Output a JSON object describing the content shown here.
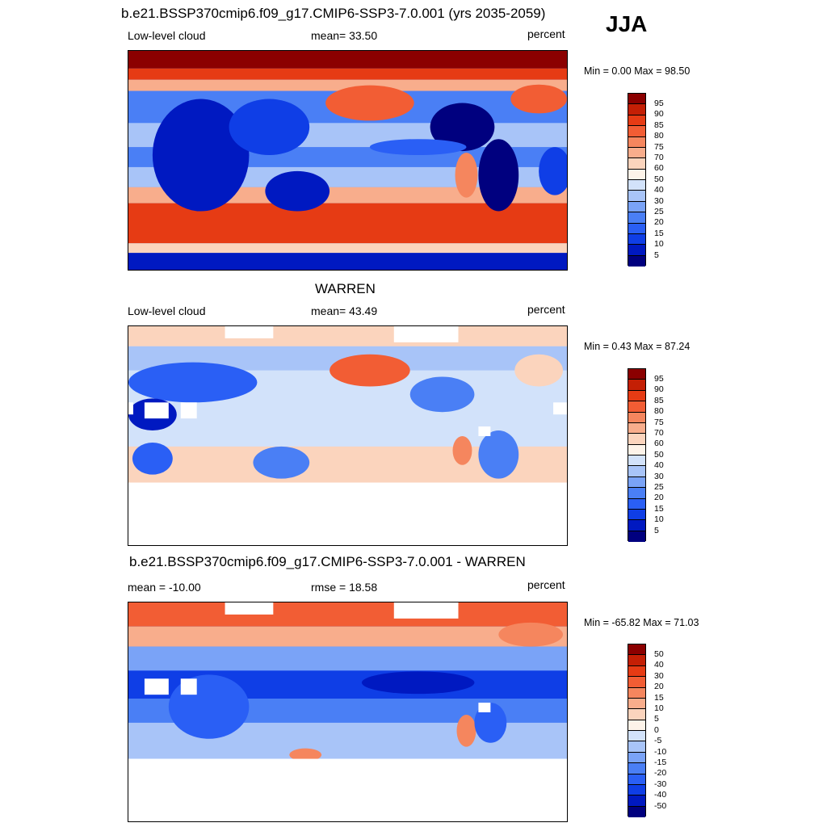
{
  "season": "JJA",
  "colors": {
    "scale": [
      "#00007f",
      "#0019c1",
      "#0f3ee6",
      "#2a5ff5",
      "#4a7ff5",
      "#7aa3f7",
      "#a8c4f8",
      "#d2e2fa",
      "#fdf3e9",
      "#fbd4bd",
      "#f8ad8c",
      "#f5865e",
      "#f25d34",
      "#e63b14",
      "#c41f05",
      "#8b0000"
    ]
  },
  "panels": [
    {
      "id": "model",
      "title": "b.e21.BSSP370cmip6.f09_g17.CMIP6-SSP3-7.0.001 (yrs 2035-2059)",
      "left_label": "Low-level cloud",
      "center_label": "mean=  33.50",
      "right_label": "percent",
      "minmax": "Min =   0.00 Max =  98.50",
      "colorbar_ticks": [
        "95",
        "90",
        "85",
        "80",
        "75",
        "70",
        "60",
        "50",
        "40",
        "30",
        "25",
        "20",
        "15",
        "10",
        "5"
      ]
    },
    {
      "id": "obs",
      "title": "WARREN",
      "left_label": "Low-level cloud",
      "center_label": "mean=  43.49",
      "right_label": "percent",
      "minmax": "Min =   0.43 Max =  87.24",
      "colorbar_ticks": [
        "95",
        "90",
        "85",
        "80",
        "75",
        "70",
        "60",
        "50",
        "40",
        "30",
        "25",
        "20",
        "15",
        "10",
        "5"
      ]
    },
    {
      "id": "diff",
      "title": "b.e21.BSSP370cmip6.f09_g17.CMIP6-SSP3-7.0.001 - WARREN",
      "left_label": "mean = -10.00",
      "center_label": "rmse =  18.58",
      "right_label": "percent",
      "minmax": "Min = -65.82 Max =  71.03",
      "colorbar_ticks": [
        "50",
        "40",
        "30",
        "20",
        "15",
        "10",
        "5",
        "0",
        "-5",
        "-10",
        "-15",
        "-20",
        "-30",
        "-40",
        "-50"
      ]
    }
  ]
}
